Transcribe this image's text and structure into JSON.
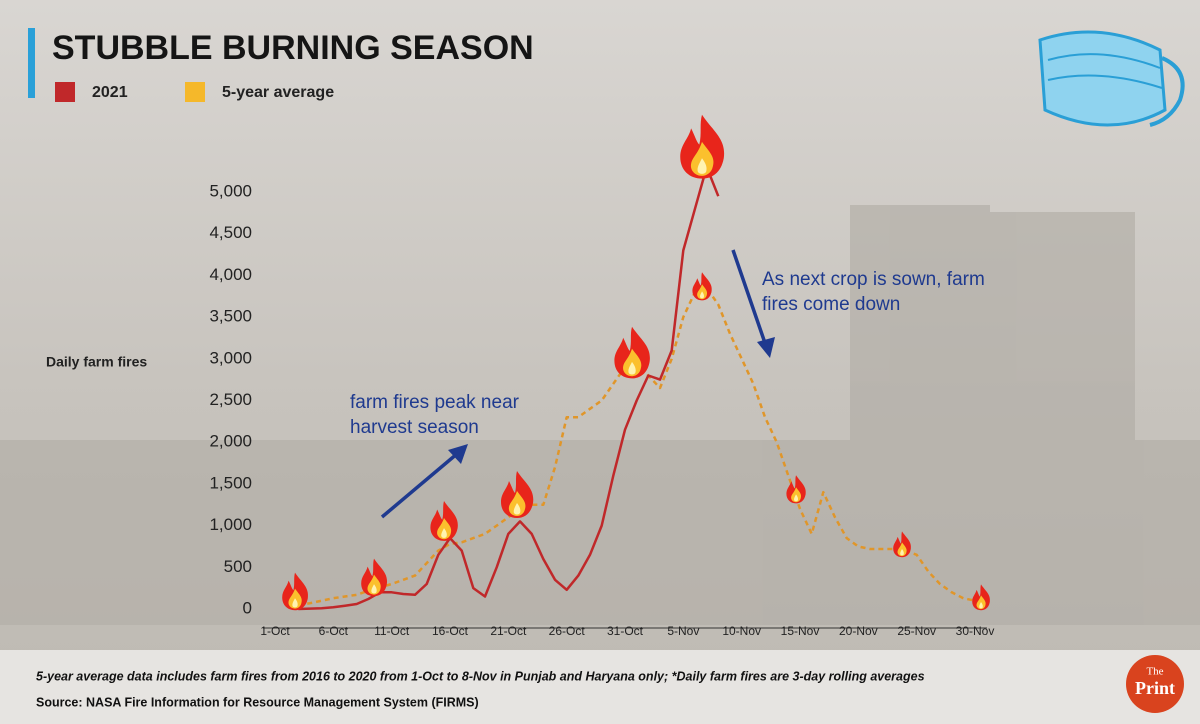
{
  "chart_data": {
    "type": "line",
    "title": "STUBBLE BURNING SEASON",
    "y_label": "Daily farm fires",
    "categories": [
      "1-Oct",
      null,
      null,
      null,
      null,
      "6-Oct",
      null,
      null,
      null,
      null,
      "11-Oct",
      null,
      null,
      null,
      null,
      "16-Oct",
      null,
      null,
      null,
      null,
      "21-Oct",
      null,
      null,
      null,
      null,
      "26-Oct",
      null,
      null,
      null,
      null,
      "31-Oct",
      null,
      null,
      null,
      null,
      "5-Nov",
      null,
      null,
      null,
      null,
      "10-Nov",
      null,
      null,
      null,
      null,
      "15-Nov",
      null,
      null,
      null,
      null,
      "20-Nov",
      null,
      null,
      null,
      null,
      "25-Nov",
      null,
      null,
      null,
      null,
      "30-Nov"
    ],
    "series": [
      {
        "name": "2021",
        "color": "#c0282a",
        "dashed": false,
        "values": [
          null,
          null,
          0,
          5,
          10,
          20,
          40,
          60,
          120,
          200,
          200,
          180,
          170,
          300,
          650,
          850,
          700,
          250,
          150,
          500,
          900,
          1050,
          900,
          600,
          350,
          230,
          400,
          650,
          1000,
          1600,
          2150,
          2500,
          2800,
          2750,
          3100,
          4300,
          4800,
          5300,
          4950,
          null,
          null,
          null,
          null,
          null,
          null,
          null,
          null,
          null,
          null,
          null,
          null,
          null,
          null,
          null,
          null,
          null,
          null,
          null,
          null,
          null,
          null
        ]
      },
      {
        "name": "5-year average",
        "color": "#f5b82a",
        "dashed": true,
        "values": [
          null,
          null,
          50,
          70,
          100,
          130,
          150,
          170,
          220,
          260,
          300,
          350,
          400,
          550,
          700,
          780,
          800,
          850,
          900,
          1000,
          1100,
          1200,
          1250,
          1250,
          1700,
          2300,
          2300,
          2400,
          2500,
          2700,
          2900,
          3000,
          2800,
          2650,
          3000,
          3500,
          3800,
          3850,
          3650,
          3300,
          3000,
          2700,
          2300,
          2000,
          1600,
          1200,
          900,
          1400,
          1100,
          850,
          750,
          720,
          720,
          720,
          700,
          650,
          450,
          300,
          200,
          130,
          100
        ]
      }
    ],
    "ylim": [
      0,
      5000
    ],
    "yticks": [
      0,
      500,
      {
        "value": 1000,
        "label": "1,000"
      },
      {
        "value": 1500,
        "label": "1,500"
      },
      {
        "value": 2000,
        "label": "2,000"
      },
      {
        "value": 2500,
        "label": "2,500"
      },
      {
        "value": 3000,
        "label": "3,000"
      },
      {
        "value": 3500,
        "label": "3,500"
      },
      {
        "value": 4000,
        "label": "4,000"
      },
      {
        "value": 4500,
        "label": "4,500"
      },
      {
        "value": 5000,
        "label": "5,000"
      }
    ],
    "annotations": [
      "farm fires peak near",
      "harvest season",
      "As next crop is sown, farm",
      "fires come down"
    ],
    "footnote": "5-year average data includes farm fires from 2016 to 2020 from 1-Oct to 8-Nov in Punjab and Haryana only; *Daily farm fires are 3-day rolling averages",
    "source": "Source: NASA Fire Information for Resource Management System (FIRMS)",
    "logo": [
      "The",
      "Print"
    ]
  }
}
